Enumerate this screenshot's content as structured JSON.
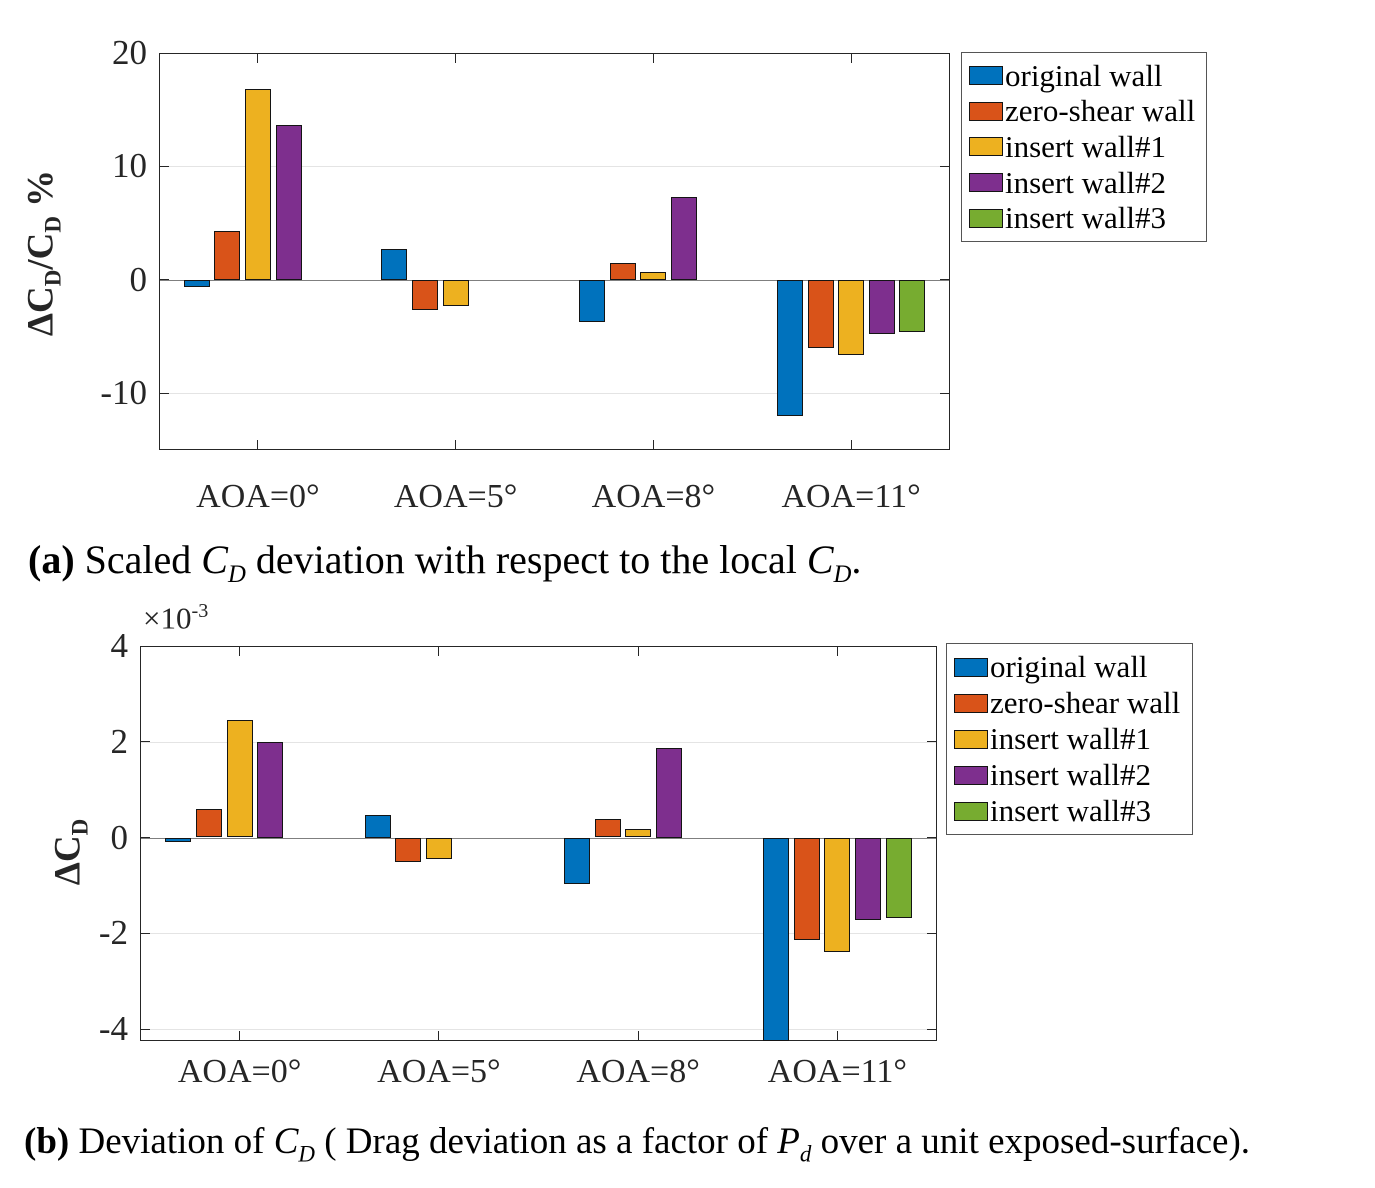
{
  "chart_data": [
    {
      "id": "a",
      "type": "bar",
      "ylabel_parts": {
        "p1": "ΔC",
        "s1": "D",
        "p2": "/C",
        "s2": "D",
        "p3": " %"
      },
      "categories": [
        "AOA=0°",
        "AOA=5°",
        "AOA=8°",
        "AOA=11°"
      ],
      "series": [
        {
          "name": "original wall",
          "color": "#0072BD",
          "values": [
            -0.6,
            2.7,
            -3.7,
            -12.0
          ]
        },
        {
          "name": "zero-shear wall",
          "color": "#D95319",
          "values": [
            4.3,
            -2.7,
            1.5,
            -6.0
          ]
        },
        {
          "name": "insert wall#1",
          "color": "#EDB120",
          "values": [
            16.8,
            -2.3,
            0.7,
            -6.6
          ]
        },
        {
          "name": "insert wall#2",
          "color": "#7E2F8E",
          "values": [
            13.7,
            0.0,
            7.3,
            -4.8
          ]
        },
        {
          "name": "insert wall#3",
          "color": "#77AC30",
          "values": [
            0.0,
            0.0,
            0.0,
            -4.6
          ]
        }
      ],
      "y_ticks": [
        20,
        10,
        0,
        -10
      ],
      "ylim": [
        -15,
        20
      ],
      "grid": [
        10,
        -10
      ],
      "legend_position": "outside-top-right",
      "caption": {
        "p1": "(a)",
        "p2": " Scaled ",
        "i1": "C",
        "s1": "D",
        "p3": " deviation with respect to the local ",
        "i2": "C",
        "s2": "D",
        "p4": "."
      }
    },
    {
      "id": "b",
      "type": "bar",
      "ylabel_parts": {
        "p1": "ΔC",
        "s1": "D"
      },
      "exponent": {
        "base": "×10",
        "sup": "-3"
      },
      "categories": [
        "AOA=0°",
        "AOA=5°",
        "AOA=8°",
        "AOA=11°"
      ],
      "series": [
        {
          "name": "original wall",
          "color": "#0072BD",
          "values": [
            -0.1,
            0.48,
            -0.97,
            -4.3
          ]
        },
        {
          "name": "zero-shear wall",
          "color": "#D95319",
          "values": [
            0.6,
            -0.52,
            0.38,
            -2.15
          ]
        },
        {
          "name": "insert wall#1",
          "color": "#EDB120",
          "values": [
            2.45,
            -0.45,
            0.18,
            -2.4
          ]
        },
        {
          "name": "insert wall#2",
          "color": "#7E2F8E",
          "values": [
            2.0,
            0.0,
            1.87,
            -1.72
          ]
        },
        {
          "name": "insert wall#3",
          "color": "#77AC30",
          "values": [
            0.0,
            0.0,
            0.0,
            -1.67
          ]
        }
      ],
      "y_ticks": [
        4,
        2,
        0,
        -2,
        -4
      ],
      "ylim": [
        -4.25,
        4
      ],
      "grid": [
        2,
        -2,
        -4
      ],
      "legend_position": "outside-top-right",
      "caption": {
        "p1": "(b)",
        "p2": " Deviation of ",
        "i1": "C",
        "s1": "D",
        "p3": " ( Drag deviation as a factor of ",
        "i2": "P",
        "s2": "d",
        "p4": " over a unit exposed-surface)."
      }
    }
  ]
}
